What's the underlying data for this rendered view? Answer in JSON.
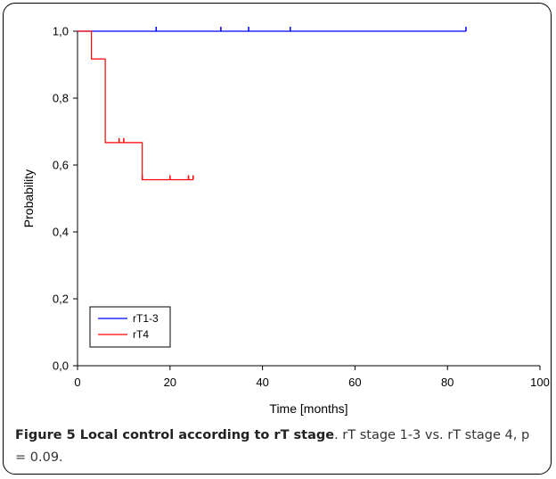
{
  "chart_data": {
    "type": "line",
    "step": true,
    "xlabel": "Time [months]",
    "ylabel": "Probability",
    "xlim": [
      0,
      100
    ],
    "ylim": [
      0.0,
      1.0
    ],
    "x_ticks": [
      0,
      20,
      40,
      60,
      80,
      100
    ],
    "x_tick_labels": [
      "0",
      "20",
      "40",
      "60",
      "80",
      "100"
    ],
    "y_ticks": [
      0.0,
      0.2,
      0.4,
      0.6,
      0.8,
      1.0
    ],
    "y_tick_labels": [
      "0,0",
      "0,2",
      "0,4",
      "0,6",
      "0,8",
      "1,0"
    ],
    "grid": false,
    "legend_position": "bottom-left",
    "series": [
      {
        "name": "rT1-3",
        "color": "#0000ff",
        "steps": [
          {
            "x": 0,
            "y": 1.0
          },
          {
            "x": 84,
            "y": 1.0
          }
        ],
        "censored": [
          17,
          31,
          37,
          46,
          84
        ]
      },
      {
        "name": "rT4",
        "color": "#ff0000",
        "steps": [
          {
            "x": 0,
            "y": 1.0
          },
          {
            "x": 3,
            "y": 0.917
          },
          {
            "x": 6,
            "y": 0.667
          },
          {
            "x": 14,
            "y": 0.556
          },
          {
            "x": 25,
            "y": 0.556
          }
        ],
        "censored": [
          9,
          10,
          14,
          20,
          24,
          25
        ]
      }
    ]
  },
  "caption": {
    "title": "Figure 5 Local control according to rT stage",
    "text": ". rT stage 1-3 vs. rT stage 4, p = 0.09."
  }
}
